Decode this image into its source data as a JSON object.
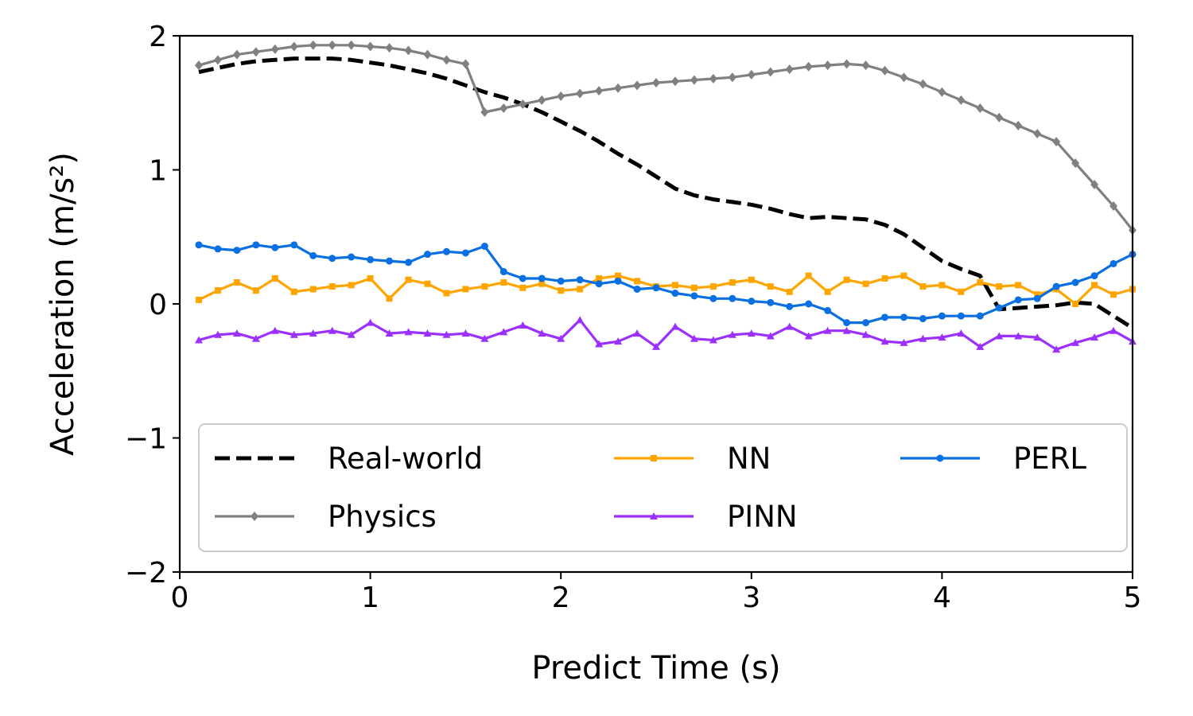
{
  "chart_data": {
    "type": "line",
    "title": "",
    "xlabel": "Predict Time (s)",
    "ylabel": "Acceleration (m/s²)",
    "xlim": [
      0,
      5
    ],
    "ylim": [
      -2,
      2
    ],
    "xticks": [
      0,
      1,
      2,
      3,
      4,
      5
    ],
    "yticks": [
      -2,
      -1,
      0,
      1,
      2
    ],
    "grid": false,
    "legend_position": "lower-center",
    "x": [
      0.1,
      0.2,
      0.3,
      0.4,
      0.5,
      0.6,
      0.7,
      0.8,
      0.9,
      1.0,
      1.1,
      1.2,
      1.3,
      1.4,
      1.5,
      1.6,
      1.7,
      1.8,
      1.9,
      2.0,
      2.1,
      2.2,
      2.3,
      2.4,
      2.5,
      2.6,
      2.7,
      2.8,
      2.9,
      3.0,
      3.1,
      3.2,
      3.3,
      3.4,
      3.5,
      3.6,
      3.7,
      3.8,
      3.9,
      4.0,
      4.1,
      4.2,
      4.3,
      4.4,
      4.5,
      4.6,
      4.7,
      4.8,
      4.9,
      5.0
    ],
    "series": [
      {
        "name": "Real-world",
        "color": "#000000",
        "style": "dashed",
        "marker": "none",
        "values": [
          1.73,
          1.76,
          1.79,
          1.81,
          1.82,
          1.83,
          1.83,
          1.83,
          1.82,
          1.8,
          1.78,
          1.75,
          1.72,
          1.68,
          1.63,
          1.58,
          1.54,
          1.49,
          1.43,
          1.36,
          1.29,
          1.21,
          1.12,
          1.04,
          0.95,
          0.86,
          0.81,
          0.78,
          0.76,
          0.74,
          0.71,
          0.67,
          0.64,
          0.65,
          0.64,
          0.63,
          0.59,
          0.52,
          0.42,
          0.32,
          0.26,
          0.21,
          -0.04,
          -0.03,
          -0.02,
          -0.01,
          0.01,
          0.0,
          -0.09,
          -0.18
        ]
      },
      {
        "name": "Physics",
        "color": "#808080",
        "style": "solid",
        "marker": "diamond",
        "values": [
          1.78,
          1.82,
          1.86,
          1.88,
          1.9,
          1.92,
          1.93,
          1.93,
          1.93,
          1.92,
          1.91,
          1.89,
          1.86,
          1.82,
          1.79,
          1.43,
          1.46,
          1.49,
          1.52,
          1.55,
          1.57,
          1.59,
          1.61,
          1.63,
          1.65,
          1.66,
          1.67,
          1.68,
          1.69,
          1.71,
          1.73,
          1.75,
          1.77,
          1.78,
          1.79,
          1.78,
          1.74,
          1.69,
          1.64,
          1.58,
          1.52,
          1.46,
          1.39,
          1.33,
          1.27,
          1.21,
          1.05,
          0.89,
          0.73,
          0.55
        ]
      },
      {
        "name": "NN",
        "color": "#ffa500",
        "style": "solid",
        "marker": "square",
        "values": [
          0.03,
          0.1,
          0.16,
          0.1,
          0.19,
          0.09,
          0.11,
          0.13,
          0.14,
          0.19,
          0.04,
          0.18,
          0.15,
          0.08,
          0.11,
          0.13,
          0.16,
          0.12,
          0.15,
          0.1,
          0.11,
          0.19,
          0.21,
          0.17,
          0.13,
          0.14,
          0.12,
          0.13,
          0.16,
          0.18,
          0.13,
          0.09,
          0.21,
          0.09,
          0.18,
          0.15,
          0.19,
          0.21,
          0.13,
          0.14,
          0.09,
          0.16,
          0.13,
          0.14,
          0.07,
          0.11,
          0.0,
          0.14,
          0.07,
          0.11
        ]
      },
      {
        "name": "PINN",
        "color": "#9b30ff",
        "style": "solid",
        "marker": "triangle",
        "values": [
          -0.27,
          -0.23,
          -0.22,
          -0.26,
          -0.2,
          -0.23,
          -0.22,
          -0.2,
          -0.23,
          -0.14,
          -0.22,
          -0.21,
          -0.22,
          -0.23,
          -0.22,
          -0.26,
          -0.21,
          -0.16,
          -0.22,
          -0.26,
          -0.12,
          -0.3,
          -0.28,
          -0.22,
          -0.32,
          -0.17,
          -0.26,
          -0.27,
          -0.23,
          -0.22,
          -0.24,
          -0.17,
          -0.24,
          -0.2,
          -0.2,
          -0.23,
          -0.28,
          -0.29,
          -0.26,
          -0.25,
          -0.22,
          -0.32,
          -0.24,
          -0.24,
          -0.25,
          -0.34,
          -0.29,
          -0.25,
          -0.2,
          -0.28
        ]
      },
      {
        "name": "PERL",
        "color": "#0a6fe0",
        "style": "solid",
        "marker": "circle",
        "values": [
          0.44,
          0.41,
          0.4,
          0.44,
          0.42,
          0.44,
          0.36,
          0.34,
          0.35,
          0.33,
          0.32,
          0.31,
          0.37,
          0.39,
          0.38,
          0.43,
          0.24,
          0.19,
          0.19,
          0.17,
          0.18,
          0.15,
          0.17,
          0.11,
          0.12,
          0.08,
          0.06,
          0.04,
          0.04,
          0.02,
          0.01,
          -0.02,
          0.0,
          -0.05,
          -0.14,
          -0.14,
          -0.1,
          -0.1,
          -0.11,
          -0.09,
          -0.09,
          -0.09,
          -0.03,
          0.03,
          0.04,
          0.13,
          0.16,
          0.21,
          0.3,
          0.37
        ]
      }
    ]
  }
}
